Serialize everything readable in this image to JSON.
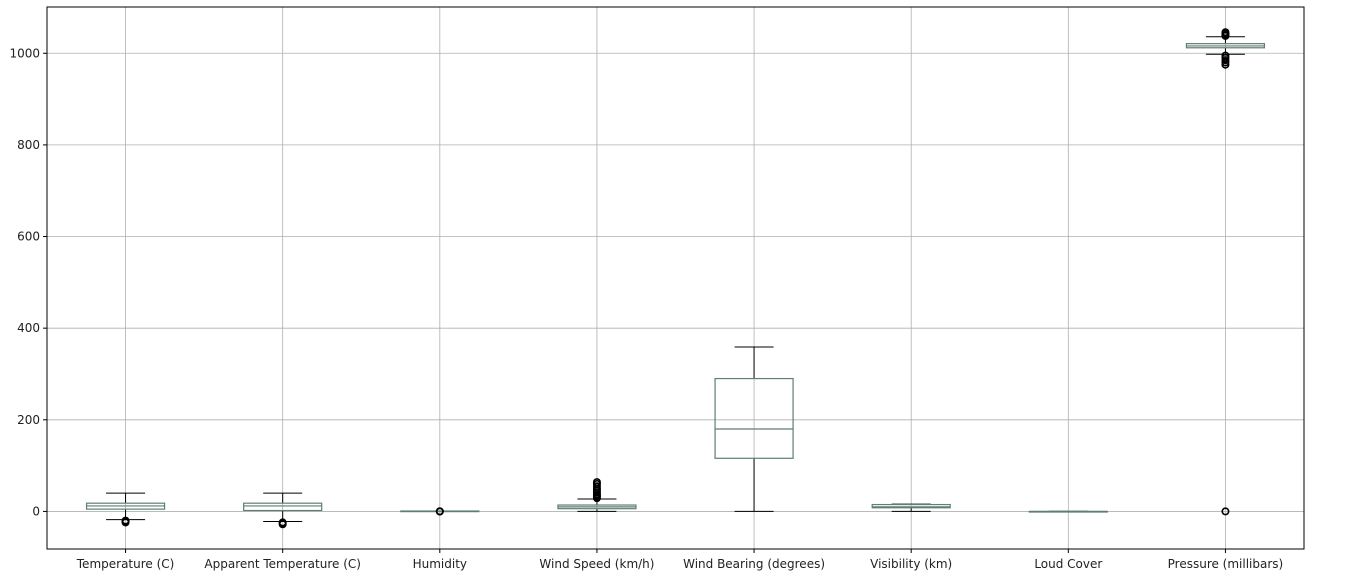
{
  "chart_data": {
    "type": "boxplot",
    "grid": true,
    "ylim": [
      -82,
      1101
    ],
    "yticks": [
      0,
      200,
      400,
      600,
      800,
      1000
    ],
    "ytick_labels": [
      "0",
      "200",
      "400",
      "600",
      "800",
      "1000"
    ],
    "categories": [
      "Temperature (C)",
      "Apparent Temperature (C)",
      "Humidity",
      "Wind Speed (km/h)",
      "Wind Bearing (degrees)",
      "Visibility (km)",
      "Loud Cover",
      "Pressure (millibars)"
    ],
    "boxes": [
      {
        "whisker_low": -18,
        "q1": 5,
        "median": 12,
        "q3": 18,
        "whisker_high": 40,
        "outliers": [
          -20,
          -22,
          -24
        ]
      },
      {
        "whisker_low": -22,
        "q1": 2,
        "median": 12,
        "q3": 18,
        "whisker_high": 40,
        "outliers": [
          -24,
          -26,
          -28
        ]
      },
      {
        "whisker_low": 0.2,
        "q1": 0.6,
        "median": 0.78,
        "q3": 0.89,
        "whisker_high": 1,
        "outliers": [
          0.1,
          0.05,
          0
        ]
      },
      {
        "whisker_low": 0,
        "q1": 6,
        "median": 10,
        "q3": 14,
        "whisker_high": 27,
        "outliers": [
          29,
          32,
          35,
          38,
          42,
          46,
          50,
          55,
          60,
          64
        ]
      },
      {
        "whisker_low": 0,
        "q1": 116,
        "median": 180,
        "q3": 290,
        "whisker_high": 359,
        "outliers": []
      },
      {
        "whisker_low": 0,
        "q1": 8,
        "median": 10,
        "q3": 15,
        "whisker_high": 16,
        "outliers": []
      },
      {
        "whisker_low": 0,
        "q1": 0,
        "median": 0,
        "q3": 0,
        "whisker_high": 0,
        "outliers": []
      },
      {
        "whisker_low": 998,
        "q1": 1012,
        "median": 1016,
        "q3": 1021,
        "whisker_high": 1036,
        "outliers": [
          0,
          975,
          980,
          985,
          990,
          995,
          1038,
          1040,
          1043,
          1046
        ]
      }
    ]
  },
  "colors": {
    "box": "#5f7e76",
    "median": "#5f7e76",
    "whisker": "#000000",
    "outlier": "#000000",
    "grid": "#b0b0b0",
    "axes": "#000000"
  }
}
